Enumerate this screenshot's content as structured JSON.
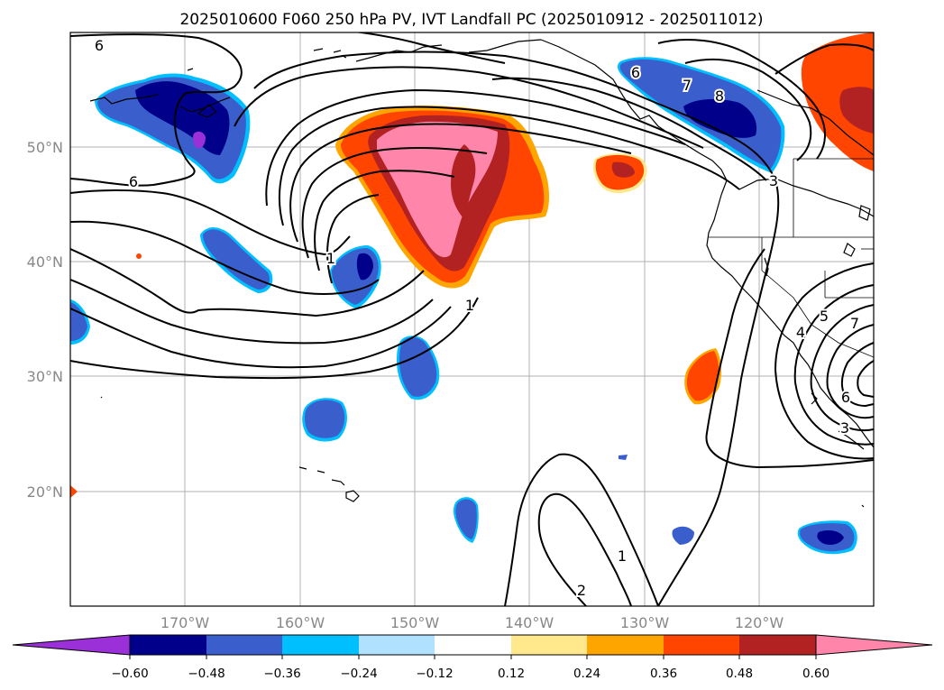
{
  "title": "2025010600 F060 250 hPa PV, IVT Landfall PC (2025010912 - 2025011012)",
  "lon_ticks": [
    "170°W",
    "160°W",
    "150°W",
    "140°W",
    "130°W",
    "120°W"
  ],
  "lat_ticks": [
    "50°N",
    "40°N",
    "30°N",
    "20°N"
  ],
  "map_extent": {
    "lon_min": -180,
    "lon_max": -110,
    "lat_min": 10,
    "lat_max": 60
  },
  "colorbar": {
    "tick_labels": [
      "−0.60",
      "−0.48",
      "−0.36",
      "−0.24",
      "−0.12",
      "0.12",
      "0.24",
      "0.36",
      "0.48",
      "0.60"
    ],
    "colors": [
      "#9b30d9",
      "#00008b",
      "#3a5fcd",
      "#00bfff",
      "#b0e2ff",
      "#ffffff",
      "#ffe98c",
      "#ffa500",
      "#ff4500",
      "#b22222",
      "#ff85aa"
    ]
  },
  "contour_labels": [
    "6",
    "6",
    "1",
    "1",
    "1",
    "2",
    "6",
    "7",
    "8",
    "3",
    "3",
    "4",
    "5",
    "6",
    "7"
  ],
  "colors": {
    "strong_positive": "#ff85aa",
    "positive_high": "#b22222",
    "positive": "#ff4500",
    "positive_low": "#ffa500",
    "negative_low": "#3a5fcd",
    "negative": "#00008b",
    "strong_negative": "#9b30d9",
    "negative_edge": "#00bfff",
    "grid": "#b0b0b0",
    "contour": "#000000"
  }
}
